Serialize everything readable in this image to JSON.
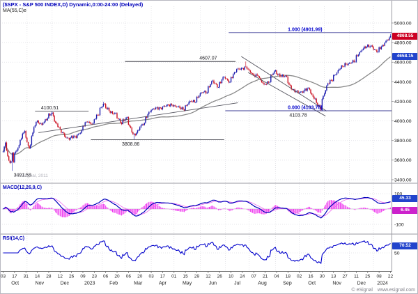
{
  "header": {
    "title": "($SPX - S&P 500 INDEX,D) Dynamic,0:00-24:00 (Delayed)",
    "ma_label": "MA(55,C)e"
  },
  "panels": {
    "macd_label": "MACD(12,26,9,C)",
    "rsi_label": "RSI(14,C)"
  },
  "badges": {
    "price_last": "4868.55",
    "ma_last": "4658.15",
    "macd_last": "45.33",
    "macd_signal_last": "6.45",
    "rsi_last": "70.52"
  },
  "watermark": "© eSignal, 2011",
  "footer": {
    "copyright": "© eSignal",
    "url": "www.esignal.com"
  },
  "colors": {
    "up": "#1a1aae",
    "down": "#cc1122",
    "ma": "#888888",
    "macd_line": "#0000bb",
    "macd_signal": "#ee66ee",
    "macd_hist": "#ee33ee",
    "rsi": "#0000cc",
    "badge_red": "#cc0022",
    "badge_blue": "#2244cc",
    "badge_magenta": "#cc22cc",
    "accent_blue": "#0000cc"
  },
  "chart_data": {
    "type": "candlestick",
    "symbol": "$SPX",
    "title": "($SPX - S&P 500 INDEX,D) Dynamic,0:00-24:00 (Delayed)",
    "interval": "D",
    "overlays": [
      "MA(55,C)e"
    ],
    "lower_studies": [
      "MACD(12,26,9,C)",
      "RSI(14,C)"
    ],
    "start_date": "2022-10-03",
    "end_date": "2024-01-22",
    "price_axis": {
      "min": 3400,
      "max": 5000,
      "tick": 200,
      "labels": [
        "5000.00",
        "4800.00",
        "4600.00",
        "4400.00",
        "4200.00",
        "4000.00",
        "3800.00",
        "3600.00",
        "3400.00"
      ]
    },
    "macd_axis": {
      "values": [
        100,
        0,
        -100
      ],
      "labels": [
        "100",
        "0",
        "-100"
      ]
    },
    "rsi_axis": {
      "values": [
        50
      ],
      "labels": [
        "50"
      ]
    },
    "last_values": {
      "price": 4868.55,
      "ma55": 4658.15,
      "macd": 45.33,
      "macd_signal": 6.45,
      "rsi": 70.52
    },
    "last_close": 4868.55,
    "weekly_closes": [
      [
        "2022-10-03",
        3678
      ],
      [
        "2022-10-05",
        3783
      ],
      [
        "2022-10-07",
        3639
      ],
      [
        "2022-10-12",
        3577
      ],
      [
        "2022-10-13",
        3670
      ],
      [
        "2022-10-14",
        3583
      ],
      [
        "2022-10-21",
        3753
      ],
      [
        "2022-10-28",
        3901
      ],
      [
        "2022-11-03",
        3720
      ],
      [
        "2022-11-11",
        3993
      ],
      [
        "2022-11-18",
        3965
      ],
      [
        "2022-11-25",
        4026
      ],
      [
        "2022-12-01",
        4077
      ],
      [
        "2022-12-09",
        3934
      ],
      [
        "2022-12-16",
        3852
      ],
      [
        "2022-12-22",
        3822
      ],
      [
        "2022-12-30",
        3839
      ],
      [
        "2023-01-06",
        3895
      ],
      [
        "2023-01-13",
        3999
      ],
      [
        "2023-01-20",
        3972
      ],
      [
        "2023-01-27",
        4070
      ],
      [
        "2023-02-02",
        4180
      ],
      [
        "2023-02-10",
        4090
      ],
      [
        "2023-02-17",
        4079
      ],
      [
        "2023-02-24",
        3970
      ],
      [
        "2023-03-03",
        4045
      ],
      [
        "2023-03-10",
        3861
      ],
      [
        "2023-03-13",
        3855
      ],
      [
        "2023-03-17",
        3916
      ],
      [
        "2023-03-24",
        3971
      ],
      [
        "2023-03-31",
        4109
      ],
      [
        "2023-04-14",
        4137
      ],
      [
        "2023-04-28",
        4169
      ],
      [
        "2023-05-05",
        4136
      ],
      [
        "2023-05-12",
        4124
      ],
      [
        "2023-05-19",
        4191
      ],
      [
        "2023-05-26",
        4205
      ],
      [
        "2023-06-02",
        4282
      ],
      [
        "2023-06-09",
        4298
      ],
      [
        "2023-06-16",
        4409
      ],
      [
        "2023-06-23",
        4348
      ],
      [
        "2023-06-30",
        4450
      ],
      [
        "2023-07-07",
        4398
      ],
      [
        "2023-07-14",
        4505
      ],
      [
        "2023-07-21",
        4536
      ],
      [
        "2023-07-27",
        4550
      ],
      [
        "2023-08-04",
        4478
      ],
      [
        "2023-08-11",
        4464
      ],
      [
        "2023-08-18",
        4369
      ],
      [
        "2023-08-25",
        4405
      ],
      [
        "2023-09-01",
        4515
      ],
      [
        "2023-09-08",
        4457
      ],
      [
        "2023-09-15",
        4450
      ],
      [
        "2023-09-22",
        4320
      ],
      [
        "2023-09-29",
        4288
      ],
      [
        "2023-10-06",
        4308
      ],
      [
        "2023-10-13",
        4327
      ],
      [
        "2023-10-20",
        4224
      ],
      [
        "2023-10-27",
        4117
      ],
      [
        "2023-11-03",
        4358
      ],
      [
        "2023-11-10",
        4415
      ],
      [
        "2023-11-17",
        4514
      ],
      [
        "2023-11-24",
        4559
      ],
      [
        "2023-12-01",
        4594
      ],
      [
        "2023-12-08",
        4604
      ],
      [
        "2023-12-15",
        4719
      ],
      [
        "2023-12-22",
        4754
      ],
      [
        "2023-12-29",
        4769
      ],
      [
        "2024-01-05",
        4697
      ],
      [
        "2024-01-12",
        4783
      ],
      [
        "2024-01-19",
        4839
      ],
      [
        "2024-01-22",
        4868.55
      ]
    ],
    "pins": [
      {
        "d": "2022-10-13",
        "low": 3491.58
      },
      {
        "d": "2022-12-01",
        "high": 4100.51
      },
      {
        "d": "2023-02-02",
        "high": 4195.44
      },
      {
        "d": "2023-03-13",
        "low": 3808.86
      },
      {
        "d": "2023-07-27",
        "high": 4607.07
      },
      {
        "d": "2023-10-27",
        "low": 4103.78
      },
      {
        "d": "2024-01-22",
        "high": 4887.0
      }
    ],
    "annotations": [
      {
        "text": "1.000 (4901.99)",
        "price": 4901.99,
        "line": true,
        "from": "2023-07-06",
        "to": "end",
        "label_date": "2023-10-09",
        "label_pos": "above",
        "color": "blue"
      },
      {
        "text": "0.000 (4103.78)",
        "price": 4103.78,
        "line": true,
        "from": "2023-07-03",
        "to": "end",
        "label_date": "2023-10-09",
        "label_pos": "above",
        "color": "blue"
      },
      {
        "text": "4607.07",
        "price": 4607.07,
        "line": true,
        "from": "2023-03-01",
        "to": "2023-07-14",
        "label_date": "2023-06-12",
        "label_pos": "above",
        "color": "black"
      },
      {
        "text": "4100.51",
        "price": 4100.51,
        "line": true,
        "from": "2022-11-10",
        "to": "2023-01-16",
        "label_date": "2022-11-29",
        "label_pos": "above",
        "color": "black"
      },
      {
        "text": "3808.86",
        "price": 3808.86,
        "line": true,
        "from": "2023-01-18",
        "to": "2023-06-30",
        "label_date": "2023-03-08",
        "label_pos": "below",
        "color": "black"
      },
      {
        "text": "3491.58",
        "price": 3491.58,
        "line": false,
        "label_date": "2022-10-26",
        "label_pos": "below",
        "color": "black"
      },
      {
        "text": "4103.78",
        "price": 4103.78,
        "line": false,
        "label_date": "2023-09-29",
        "label_pos": "below",
        "color": "black"
      }
    ],
    "trendlines": [
      {
        "x1": "2022-11-15",
        "p1": 3880,
        "x2": "2023-07-18",
        "p2": 4185
      },
      {
        "x1": "2023-07-21",
        "p1": 4659,
        "x2": "2023-11-03",
        "p2": 4100
      },
      {
        "x1": "2023-07-31",
        "p1": 4495,
        "x2": "2023-11-02",
        "p2": 4050
      }
    ],
    "x_axis": {
      "day_ticks": [
        [
          "2022-10-03",
          "03"
        ],
        [
          "2022-10-17",
          "17"
        ],
        [
          "2022-10-31",
          "31"
        ],
        [
          "2022-11-14",
          "14"
        ],
        [
          "2022-11-28",
          "28"
        ],
        [
          "2022-12-12",
          "12"
        ],
        [
          "2022-12-26",
          "26"
        ],
        [
          "2023-01-09",
          "09"
        ],
        [
          "2023-01-23",
          "23"
        ],
        [
          "2023-02-06",
          "06"
        ],
        [
          "2023-02-20",
          "20"
        ],
        [
          "2023-03-06",
          "06"
        ],
        [
          "2023-03-20",
          "20"
        ],
        [
          "2023-04-03",
          "03"
        ],
        [
          "2023-04-17",
          "17"
        ],
        [
          "2023-05-01",
          "01"
        ],
        [
          "2023-05-15",
          "15"
        ],
        [
          "2023-05-29",
          "29"
        ],
        [
          "2023-06-12",
          "12"
        ],
        [
          "2023-06-26",
          "26"
        ],
        [
          "2023-07-10",
          "10"
        ],
        [
          "2023-07-24",
          "24"
        ],
        [
          "2023-08-07",
          "07"
        ],
        [
          "2023-08-21",
          "21"
        ],
        [
          "2023-09-04",
          "04"
        ],
        [
          "2023-09-18",
          "18"
        ],
        [
          "2023-10-02",
          "02"
        ],
        [
          "2023-10-16",
          "16"
        ],
        [
          "2023-10-30",
          "30"
        ],
        [
          "2023-11-13",
          "13"
        ],
        [
          "2023-11-27",
          "27"
        ],
        [
          "2023-12-11",
          "11"
        ],
        [
          "2023-12-25",
          "25"
        ],
        [
          "2024-01-08",
          "08"
        ],
        [
          "2024-01-22",
          "22"
        ]
      ],
      "month_ticks": [
        [
          "2022-10-01",
          "Oct"
        ],
        [
          "2022-11-01",
          "Nov"
        ],
        [
          "2022-12-01",
          "Dec"
        ],
        [
          "2023-01-01",
          "2023"
        ],
        [
          "2023-02-01",
          "Feb"
        ],
        [
          "2023-03-01",
          "Mar"
        ],
        [
          "2023-04-01",
          "Apr"
        ],
        [
          "2023-05-01",
          "May"
        ],
        [
          "2023-06-01",
          "Jun"
        ],
        [
          "2023-07-01",
          "Jul"
        ],
        [
          "2023-08-01",
          "Aug"
        ],
        [
          "2023-09-01",
          "Sep"
        ],
        [
          "2023-10-01",
          "Oct"
        ],
        [
          "2023-11-01",
          "Nov"
        ],
        [
          "2023-12-01",
          "Dec"
        ],
        [
          "2024-01-01",
          "2024"
        ]
      ]
    }
  }
}
